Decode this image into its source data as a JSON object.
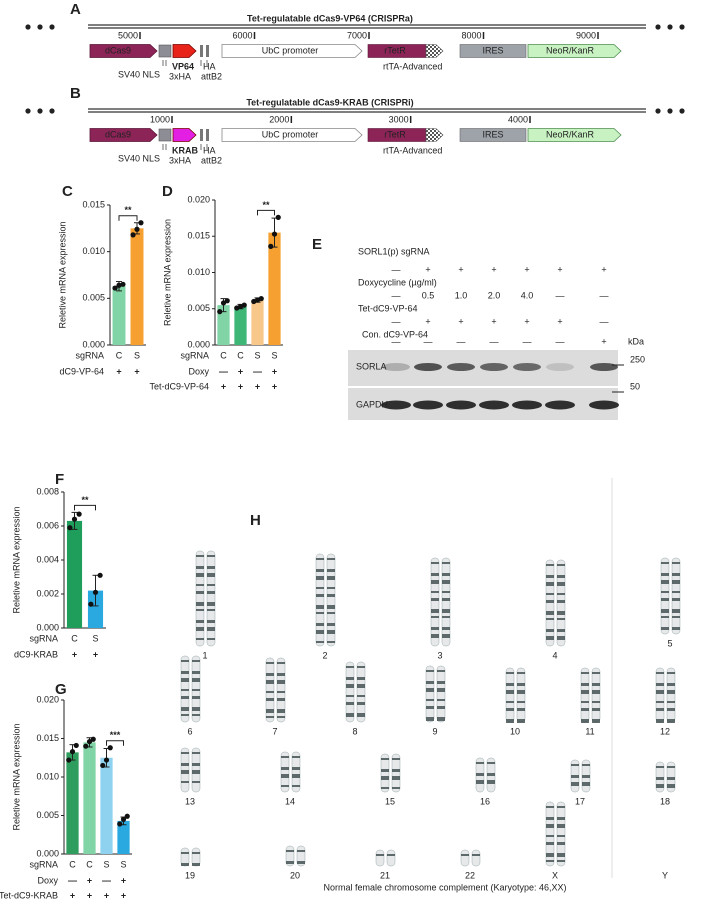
{
  "panel_a": {
    "letter": "A",
    "title": "Tet-regulatable dCas9-VP64 (CRISPRa)",
    "ruler": [
      5000,
      6000,
      7000,
      8000,
      9000
    ],
    "features": {
      "dcas9": "dCas9",
      "nls": "SV40 NLS",
      "effector": "VP64",
      "tag": "3xHA",
      "ha": "HA",
      "att": "attB2",
      "promoter": "UbC promoter",
      "rtetr": "rTetR",
      "rtta": "rtTA-Advanced",
      "ires": "IRES",
      "neo": "NeoR/KanR"
    }
  },
  "panel_b": {
    "letter": "B",
    "title": "Tet-regulatable dCas9-KRAB (CRISPRi)",
    "ruler": [
      1000,
      2000,
      3000,
      4000
    ],
    "features": {
      "dcas9": "dCas9",
      "nls": "SV40 NLS",
      "effector": "KRAB",
      "tag": "3xHA",
      "ha": "HA",
      "att": "attB2",
      "promoter": "UbC promoter",
      "rtetr": "rTetR",
      "rtta": "rtTA-Advanced",
      "ires": "IRES",
      "neo": "NeoR/KanR"
    }
  },
  "chart_data": [
    {
      "type": "bar",
      "panel": "C",
      "ylabel": "Reletive mRNA expression",
      "ylim": [
        0,
        0.015
      ],
      "yticks": [
        {
          "value": 0,
          "label": "0.000"
        },
        0.005,
        {
          "value": 0.01,
          "label": "0.010"
        },
        0.015
      ],
      "category_label": "sgRNA",
      "categories": [
        "C",
        "S"
      ],
      "conditions": [
        {
          "name": "dC9-VP-64",
          "values": [
            "+",
            "+"
          ]
        }
      ],
      "values": [
        0.0063,
        0.0125
      ],
      "errors": [
        0.0005,
        0.0006
      ],
      "colors": [
        "#80d4a6",
        "#f5a030"
      ],
      "points": [
        [
          0.0061,
          0.0064,
          0.0065
        ],
        [
          0.0118,
          0.0124,
          0.0131
        ]
      ],
      "annotations": [
        {
          "label": "**",
          "bars": [
            0,
            1
          ]
        }
      ]
    },
    {
      "type": "bar",
      "panel": "D",
      "ylabel": "Reletive mRNA expression",
      "ylim": [
        0,
        0.02
      ],
      "yticks": [
        {
          "value": 0,
          "label": "0.000"
        },
        0.005,
        {
          "value": 0.01,
          "label": "0.010"
        },
        0.015,
        {
          "value": 0.02,
          "label": "0.020"
        }
      ],
      "category_label": "sgRNA",
      "categories": [
        "C",
        "C",
        "S",
        "S"
      ],
      "conditions": [
        {
          "name": "Doxy",
          "values": [
            "—",
            "+",
            "—",
            "+"
          ]
        },
        {
          "name": "Tet-dC9-VP-64",
          "values": [
            "+",
            "+",
            "+",
            "+"
          ]
        }
      ],
      "values": [
        0.0055,
        0.0053,
        0.0062,
        0.0155
      ],
      "errors": [
        0.0009,
        0.0003,
        0.0003,
        0.002
      ],
      "colors": [
        "#80d4a6",
        "#3db676",
        "#f7c88a",
        "#f5a030"
      ],
      "points": [
        [
          0.0046,
          0.0058,
          0.0061
        ],
        [
          0.0051,
          0.0053,
          0.0055
        ],
        [
          0.006,
          0.0062,
          0.0064
        ],
        [
          0.0136,
          0.0153,
          0.0176
        ]
      ],
      "annotations": [
        {
          "label": "**",
          "bars": [
            2,
            3
          ]
        }
      ]
    },
    {
      "type": "bar",
      "panel": "F",
      "ylabel": "Reletive mRNA expression",
      "ylim": [
        0,
        0.008
      ],
      "yticks": [
        {
          "value": 0,
          "label": "0.000"
        },
        0.002,
        0.004,
        0.006,
        0.008
      ],
      "category_label": "sgRNA",
      "categories": [
        "C",
        "S"
      ],
      "conditions": [
        {
          "name": "dC9-KRAB",
          "values": [
            "+",
            "+"
          ]
        }
      ],
      "values": [
        0.0063,
        0.0022
      ],
      "errors": [
        0.0005,
        0.0009
      ],
      "colors": [
        "#1f9d5a",
        "#2aa8e0"
      ],
      "points": [
        [
          0.0059,
          0.0064,
          0.0067
        ],
        [
          0.0014,
          0.0021,
          0.0031
        ]
      ],
      "annotations": [
        {
          "label": "**",
          "bars": [
            0,
            1
          ]
        }
      ]
    },
    {
      "type": "bar",
      "panel": "G",
      "ylabel": "Reletive mRNA expression",
      "ylim": [
        0,
        0.02
      ],
      "yticks": [
        {
          "value": 0,
          "label": "0.000"
        },
        0.005,
        {
          "value": 0.01,
          "label": "0.010"
        },
        0.015,
        {
          "value": 0.02,
          "label": "0.020"
        }
      ],
      "category_label": "sgRNA",
      "categories": [
        "C",
        "C",
        "S",
        "S"
      ],
      "conditions": [
        {
          "name": "Doxy",
          "values": [
            "—",
            "+",
            "—",
            "+"
          ]
        },
        {
          "name": "Tet-dC9-KRAB",
          "values": [
            "+",
            "+",
            "+",
            "+"
          ]
        }
      ],
      "values": [
        0.0132,
        0.0145,
        0.0125,
        0.0043
      ],
      "errors": [
        0.001,
        0.0006,
        0.0012,
        0.0005
      ],
      "colors": [
        "#2f9d5d",
        "#80d4a6",
        "#8fd2ef",
        "#2aa8e0"
      ],
      "points": [
        [
          0.0122,
          0.0133,
          0.0141
        ],
        [
          0.014,
          0.0146,
          0.0149
        ],
        [
          0.0115,
          0.0122,
          0.0138
        ],
        [
          0.0039,
          0.0045,
          0.0049
        ]
      ],
      "annotations": [
        {
          "label": "***",
          "bars": [
            2,
            3
          ]
        }
      ]
    }
  ],
  "panel_e": {
    "letter": "E",
    "rows": [
      {
        "label": "SORL1(p) sgRNA",
        "cells": [
          "—",
          "+",
          "+",
          "+",
          "+",
          "+",
          "+"
        ]
      },
      {
        "label": "Doxycycline (µg/ml)",
        "cells": [
          "—",
          "0.5",
          "1.0",
          "2.0",
          "4.0",
          "—",
          "—"
        ]
      },
      {
        "label": "Tet-dC9-VP-64",
        "cells": [
          "—",
          "+",
          "+",
          "+",
          "+",
          "+",
          "—"
        ]
      },
      {
        "label": "Con. dC9-VP-64",
        "cells": [
          "—",
          "—",
          "—",
          "—",
          "—",
          "—",
          "+"
        ]
      }
    ],
    "bands": [
      "SORLA",
      "GAPDH"
    ],
    "unit": "kDa",
    "markers": [
      "250",
      "50"
    ]
  },
  "panel_h": {
    "letter": "H",
    "chromosomes": [
      "1",
      "2",
      "3",
      "4",
      "5",
      "6",
      "7",
      "8",
      "9",
      "10",
      "11",
      "12",
      "13",
      "14",
      "15",
      "16",
      "17",
      "18",
      "19",
      "20",
      "21",
      "22",
      "X",
      "Y"
    ],
    "caption": "Normal female chromosome complement (Karyotype: 46,XX)"
  }
}
